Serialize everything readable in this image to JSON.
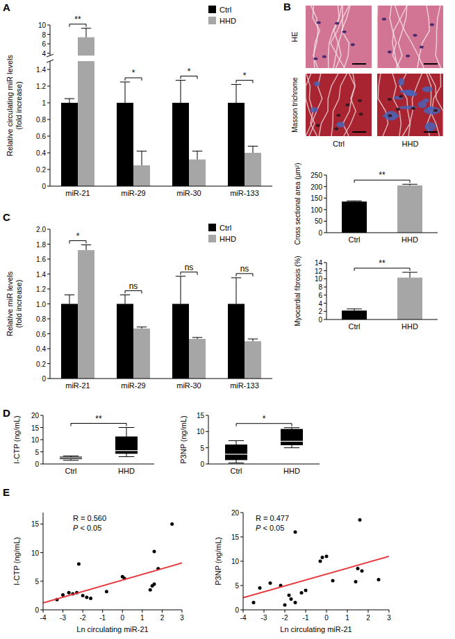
{
  "micrographs": {
    "panel_label": "B",
    "rows": [
      "HE",
      "Masson trichrome"
    ],
    "columns": [
      "Ctrl",
      "HHD"
    ]
  },
  "chart_data": [
    {
      "panel_label": "A",
      "type": "bar",
      "categories": [
        "miR-21",
        "miR-29",
        "miR-30",
        "miR-133"
      ],
      "series": [
        {
          "name": "Ctrl",
          "color": "#000000",
          "values": [
            1,
            1,
            1,
            1
          ],
          "errors": [
            0.05,
            0.25,
            0.27,
            0.22
          ]
        },
        {
          "name": "HHD",
          "color": "#a6a6a6",
          "values": [
            7.4,
            0.25,
            0.32,
            0.4
          ],
          "errors": [
            1.9,
            0.17,
            0.1,
            0.08
          ]
        }
      ],
      "ylabel": [
        "Relative circulating miR levels",
        "(fold increase)"
      ],
      "ylim": [
        0,
        10
      ],
      "ybreak": [
        1.5,
        3.5
      ],
      "yticks": [
        0,
        0.2,
        0.4,
        0.6,
        0.8,
        1,
        1.2,
        1.4,
        4,
        6,
        8,
        10
      ],
      "annotations": [
        "**",
        "*",
        "*",
        "*"
      ],
      "legend": "upper right"
    },
    {
      "type": "bar",
      "categories": [
        "Ctrl",
        "HHD"
      ],
      "values": [
        135,
        205
      ],
      "errors": [
        3,
        5
      ],
      "colors": [
        "#000000",
        "#a6a6a6"
      ],
      "ylabel": "Cross sectional area (μm²)",
      "ylim": [
        0,
        250
      ],
      "yticks": [
        0,
        50,
        100,
        150,
        200,
        250
      ],
      "annotations": [
        "**"
      ]
    },
    {
      "type": "bar",
      "categories": [
        "Ctrl",
        "HHD"
      ],
      "values": [
        2.2,
        10.3
      ],
      "errors": [
        0.4,
        1.3
      ],
      "colors": [
        "#000000",
        "#a6a6a6"
      ],
      "ylabel": "Myocardial fibrosis (%)",
      "ylim": [
        0,
        14
      ],
      "yticks": [
        0,
        2,
        4,
        6,
        8,
        10,
        12,
        14
      ],
      "annotations": [
        "**"
      ]
    },
    {
      "panel_label": "C",
      "type": "bar",
      "categories": [
        "miR-21",
        "miR-29",
        "miR-30",
        "miR-133"
      ],
      "series": [
        {
          "name": "Ctrl",
          "color": "#000000",
          "values": [
            1,
            1,
            1,
            1
          ],
          "errors": [
            0.12,
            0.12,
            0.37,
            0.35
          ]
        },
        {
          "name": "HHD",
          "color": "#a6a6a6",
          "values": [
            1.72,
            0.67,
            0.53,
            0.5
          ],
          "errors": [
            0.07,
            0.02,
            0.02,
            0.03
          ]
        }
      ],
      "ylabel": [
        "Relative miR levels",
        "(fold increase)"
      ],
      "ylim": [
        0,
        2.0
      ],
      "yticks": [
        0,
        0.2,
        0.4,
        0.6,
        0.8,
        {
          "value": 1.0,
          "label": "1.0"
        },
        1.2,
        1.4,
        1.6,
        1.8,
        {
          "value": 2.0,
          "label": "2.0"
        }
      ],
      "annotations": [
        "*",
        "ns",
        "ns",
        "ns"
      ],
      "legend": "upper right"
    },
    {
      "panel_label": "D",
      "type": "box",
      "categories": [
        "Ctrl",
        "HHD"
      ],
      "color": "#000000",
      "min": [
        1.5,
        3
      ],
      "q1": [
        2,
        4.2
      ],
      "median": [
        2.5,
        5.5
      ],
      "q3": [
        3,
        11.3
      ],
      "max": [
        3.3,
        15
      ],
      "ylabel": "I-CTP (ng/mL)",
      "ylim": [
        0,
        20
      ],
      "yticks": [
        0,
        5,
        10,
        15,
        20
      ],
      "annotations": [
        "**"
      ]
    },
    {
      "type": "box",
      "categories": [
        "Ctrl",
        "HHD"
      ],
      "color": "#000000",
      "min": [
        0.3,
        5
      ],
      "q1": [
        1.2,
        5.8
      ],
      "median": [
        3,
        7
      ],
      "q3": [
        6,
        10.8
      ],
      "max": [
        7.2,
        11.2
      ],
      "ylabel": "P3NP (ng/mL)",
      "ylim": [
        0,
        15
      ],
      "yticks": [
        0,
        5,
        10,
        15
      ],
      "annotations": [
        "*"
      ]
    },
    {
      "panel_label": "E",
      "type": "scatter",
      "xlabel": "Ln circulating miR-21",
      "ylabel": "I-CTP (ng/mL)",
      "xlim": [
        -4,
        3
      ],
      "xticks": [
        -4,
        -3,
        -2,
        -1,
        0,
        1,
        2,
        3
      ],
      "ylim": [
        0,
        17
      ],
      "yticks": [
        0,
        5,
        10,
        15
      ],
      "series": [
        {
          "type": "scatter",
          "color": "#000000",
          "marker": "circle",
          "x": [
            -3.3,
            -3.0,
            -2.7,
            -2.5,
            -2.3,
            -2.2,
            -2.0,
            -1.8,
            -1.6,
            -0.8,
            0,
            0.1,
            1.4,
            1.5,
            1.6,
            1.6,
            1.8,
            2.5
          ],
          "values": [
            1.8,
            2.6,
            3.0,
            2.8,
            3.0,
            8.0,
            2.5,
            2.2,
            2.0,
            3.2,
            5.8,
            5.5,
            3.5,
            4.2,
            4.5,
            10.2,
            7.2,
            15.0
          ]
        },
        {
          "type": "line",
          "color": "#e8383d",
          "x": [
            -4,
            3
          ],
          "values": [
            1.2,
            8.2
          ]
        }
      ],
      "annotations": [
        "R = 0.560",
        "P < 0.05"
      ]
    },
    {
      "type": "scatter",
      "xlabel": "Ln circulating miR-21",
      "ylabel": "P3NP (ng/mL)",
      "xlim": [
        -4,
        3
      ],
      "xticks": [
        -4,
        -3,
        -2,
        -1,
        0,
        1,
        2,
        3
      ],
      "ylim": [
        0,
        20
      ],
      "yticks": [
        0,
        5,
        10,
        15,
        20
      ],
      "series": [
        {
          "type": "scatter",
          "color": "#000000",
          "marker": "circle",
          "x": [
            -3.5,
            -3.2,
            -2.7,
            -2.2,
            -2.0,
            -1.8,
            -1.7,
            -1.5,
            -1.5,
            -1.2,
            -1.0,
            -0.3,
            -0.2,
            0,
            0.3,
            1.4,
            1.5,
            1.6,
            1.7,
            2.5
          ],
          "values": [
            1.5,
            4.5,
            5.5,
            5.0,
            1.0,
            3.0,
            2.2,
            16,
            1.5,
            3.5,
            4.0,
            10,
            10.8,
            11,
            6,
            5.8,
            8.5,
            18.5,
            8,
            6.2
          ]
        },
        {
          "type": "line",
          "color": "#e8383d",
          "x": [
            -4,
            3
          ],
          "values": [
            2.5,
            11
          ]
        }
      ],
      "annotations": [
        "R = 0.477",
        "P < 0.05"
      ]
    }
  ]
}
